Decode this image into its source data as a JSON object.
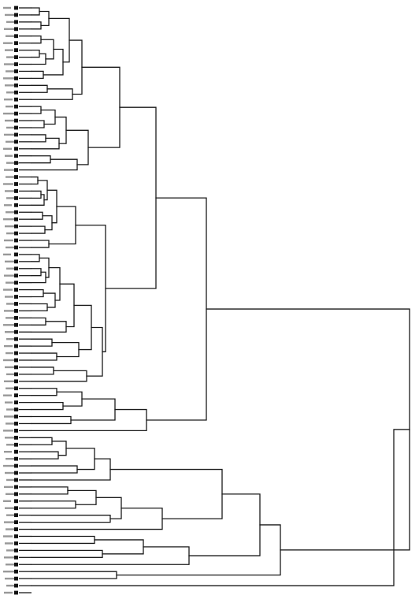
{
  "diagram": {
    "type": "dendrogram",
    "orientation": "left-to-right",
    "leaf_count": 84,
    "line_color": "#1a1a1a",
    "label_color": "#444444",
    "marker_color": "#111111",
    "background": "#ffffff",
    "leaf_labels_legible": false
  }
}
